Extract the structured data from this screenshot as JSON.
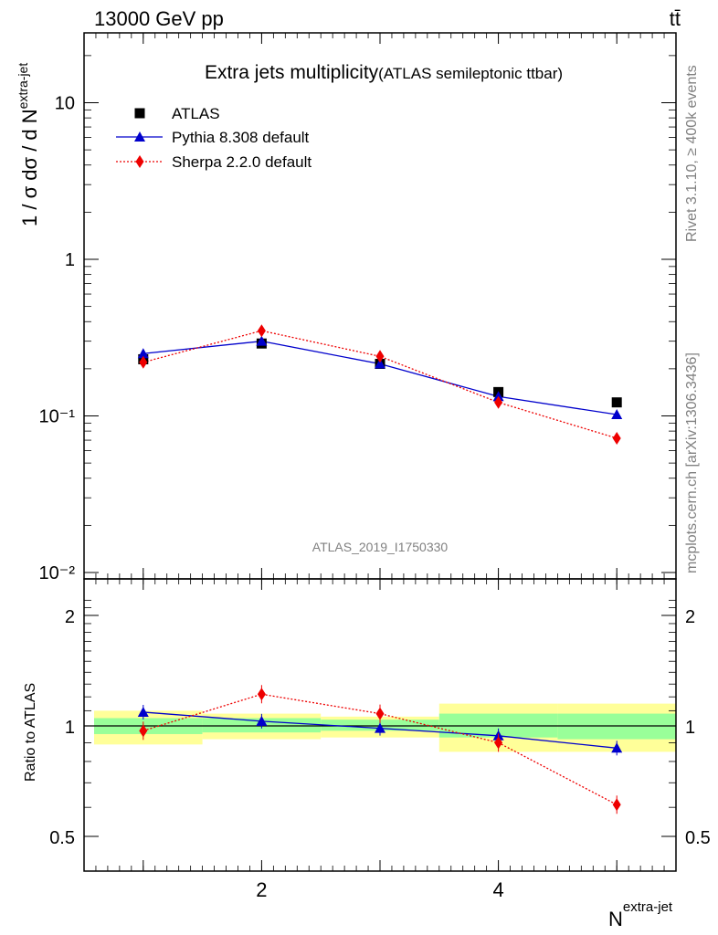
{
  "header": {
    "process": "13000 GeV pp",
    "tag": "tt̄"
  },
  "side_text": {
    "rivet": "Rivet 3.1.10, ≥ 400k events",
    "mcplots": "mcplots.cern.ch [arXiv:1306.3436]"
  },
  "chart_data": {
    "type": "scatter",
    "title": "Extra jets multiplicity",
    "subtitle": "(ATLAS semileptonic ttbar)",
    "analysis_id": "ATLAS_2019_I1750330",
    "xlabel": "N",
    "xlabel_sup": "extra-jet",
    "ylabel": "1 / σ dσ / d N",
    "ylabel_sup": "extra-jet",
    "ratio_ylabel": "Ratio to ATLAS",
    "xlim": [
      0.5,
      5.5
    ],
    "ylim": [
      0.01,
      30
    ],
    "yscale": "log",
    "ratio_ylim": [
      0.4,
      2.3
    ],
    "x_ticks": [
      "2",
      "4"
    ],
    "y_ticks": [
      "10⁻²",
      "10⁻¹",
      "1",
      "10"
    ],
    "ratio_ticks": [
      "0.5",
      "1",
      "2"
    ],
    "legend_position": "top-left",
    "x": [
      1,
      2,
      3,
      4,
      5
    ],
    "bins": [
      [
        0.5,
        1.5
      ],
      [
        1.5,
        2.5
      ],
      [
        2.5,
        3.5
      ],
      [
        3.5,
        4.5
      ],
      [
        4.5,
        5.5
      ]
    ],
    "series": [
      {
        "name": "ATLAS",
        "color": "#000000",
        "marker": "square",
        "values": [
          0.23,
          0.29,
          0.215,
          0.142,
          0.122
        ]
      },
      {
        "name": "Pythia 8.308 default",
        "color": "#0000cc",
        "marker": "triangle",
        "line": "solid",
        "values": [
          0.25,
          0.3,
          0.215,
          0.133,
          0.102
        ]
      },
      {
        "name": "Sherpa 2.2.0 default",
        "color": "#ee0000",
        "marker": "diamond",
        "line": "dotted",
        "values": [
          0.22,
          0.35,
          0.24,
          0.122,
          0.072
        ]
      }
    ],
    "ratio": {
      "pythia": [
        1.09,
        1.03,
        0.985,
        0.94,
        0.87
      ],
      "sherpa": [
        0.97,
        1.22,
        1.08,
        0.9,
        0.61
      ],
      "band_inner": [
        [
          0.95,
          1.05
        ],
        [
          0.96,
          1.05
        ],
        [
          0.97,
          1.04
        ],
        [
          0.93,
          1.08
        ],
        [
          0.92,
          1.08
        ]
      ],
      "band_outer": [
        [
          0.89,
          1.1
        ],
        [
          0.92,
          1.08
        ],
        [
          0.93,
          1.06
        ],
        [
          0.85,
          1.15
        ],
        [
          0.85,
          1.15
        ]
      ]
    }
  }
}
